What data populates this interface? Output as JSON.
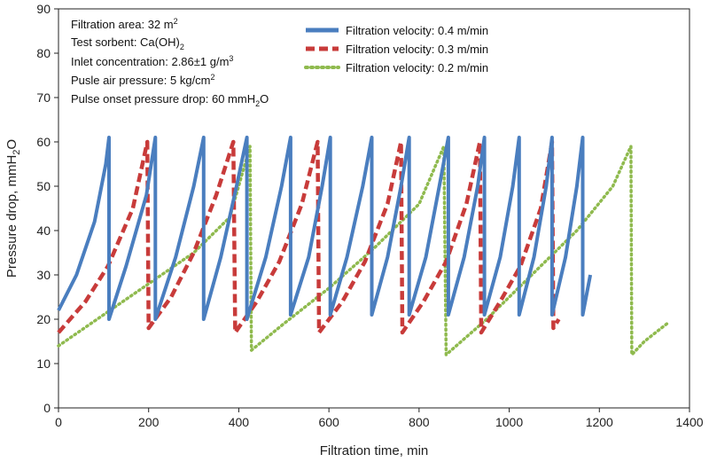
{
  "chart_data": {
    "type": "line",
    "xlabel": "Filtration time, min",
    "ylabel": {
      "main": "Pressure drop, mmH",
      "sub": "2",
      "end": "O"
    },
    "xlim": [
      0,
      1400
    ],
    "ylim": [
      0,
      90
    ],
    "xticks": [
      0,
      200,
      400,
      600,
      800,
      1000,
      1200,
      1400
    ],
    "yticks": [
      0,
      10,
      20,
      30,
      40,
      50,
      60,
      70,
      80,
      90
    ],
    "grid": false,
    "legend_position": "top-center",
    "annotations": [
      {
        "text": "Filtration area: 32 m",
        "sup": "2",
        "tail": ""
      },
      {
        "text": "Test sorbent: Ca(OH)",
        "sub": "2",
        "tail": ""
      },
      {
        "text": "Inlet concentration: 2.86±1 g/m",
        "sup": "3",
        "tail": ""
      },
      {
        "text": "Pusle air pressure: 5 kg/cm",
        "sup": "2",
        "tail": ""
      },
      {
        "text": "Pulse onset pressure drop: 60 mmH",
        "sub": "2",
        "tail": "O"
      }
    ],
    "series": [
      {
        "name": "Filtration velocity: 0.4 m/min",
        "color": "#4a7ebf",
        "style": "solid",
        "points": [
          [
            0,
            22
          ],
          [
            40,
            30
          ],
          [
            80,
            42
          ],
          [
            105,
            55
          ],
          [
            112,
            61
          ],
          [
            112,
            20
          ],
          [
            150,
            32
          ],
          [
            195,
            48
          ],
          [
            215,
            61
          ],
          [
            215,
            20
          ],
          [
            260,
            34
          ],
          [
            300,
            50
          ],
          [
            322,
            61
          ],
          [
            322,
            20
          ],
          [
            360,
            34
          ],
          [
            395,
            50
          ],
          [
            418,
            61
          ],
          [
            418,
            20
          ],
          [
            460,
            34
          ],
          [
            495,
            50
          ],
          [
            515,
            61
          ],
          [
            515,
            21
          ],
          [
            555,
            34
          ],
          [
            585,
            50
          ],
          [
            603,
            61
          ],
          [
            603,
            21
          ],
          [
            640,
            34
          ],
          [
            675,
            50
          ],
          [
            695,
            61
          ],
          [
            695,
            21
          ],
          [
            730,
            34
          ],
          [
            760,
            50
          ],
          [
            778,
            61
          ],
          [
            778,
            21
          ],
          [
            815,
            34
          ],
          [
            845,
            50
          ],
          [
            865,
            61
          ],
          [
            865,
            21
          ],
          [
            900,
            34
          ],
          [
            930,
            50
          ],
          [
            945,
            61
          ],
          [
            945,
            21
          ],
          [
            980,
            34
          ],
          [
            1008,
            50
          ],
          [
            1022,
            61
          ],
          [
            1022,
            21
          ],
          [
            1055,
            34
          ],
          [
            1082,
            50
          ],
          [
            1095,
            61
          ],
          [
            1095,
            21
          ],
          [
            1125,
            34
          ],
          [
            1150,
            50
          ],
          [
            1163,
            61
          ],
          [
            1163,
            21
          ],
          [
            1180,
            30
          ]
        ]
      },
      {
        "name": "Filtration velocity: 0.3 m/min",
        "color": "#c83b3a",
        "style": "dash",
        "points": [
          [
            0,
            17
          ],
          [
            60,
            24
          ],
          [
            110,
            32
          ],
          [
            165,
            45
          ],
          [
            197,
            60
          ],
          [
            200,
            18
          ],
          [
            250,
            25
          ],
          [
            300,
            35
          ],
          [
            350,
            48
          ],
          [
            388,
            60
          ],
          [
            392,
            17
          ],
          [
            440,
            24
          ],
          [
            490,
            33
          ],
          [
            540,
            46
          ],
          [
            575,
            60
          ],
          [
            578,
            17
          ],
          [
            630,
            24
          ],
          [
            680,
            33
          ],
          [
            730,
            46
          ],
          [
            760,
            60
          ],
          [
            763,
            17
          ],
          [
            810,
            24
          ],
          [
            860,
            33
          ],
          [
            905,
            46
          ],
          [
            935,
            60
          ],
          [
            938,
            17
          ],
          [
            980,
            24
          ],
          [
            1025,
            32
          ],
          [
            1070,
            45
          ],
          [
            1095,
            60
          ],
          [
            1098,
            18
          ],
          [
            1110,
            20
          ]
        ]
      },
      {
        "name": "Filtration velocity: 0.2 m/min",
        "color": "#8fba4e",
        "style": "dot",
        "points": [
          [
            0,
            14
          ],
          [
            100,
            21
          ],
          [
            200,
            28
          ],
          [
            300,
            35
          ],
          [
            380,
            43
          ],
          [
            425,
            59
          ],
          [
            428,
            13
          ],
          [
            500,
            19
          ],
          [
            600,
            27
          ],
          [
            700,
            36
          ],
          [
            800,
            46
          ],
          [
            855,
            59
          ],
          [
            860,
            12
          ],
          [
            950,
            20
          ],
          [
            1050,
            30
          ],
          [
            1150,
            40
          ],
          [
            1230,
            50
          ],
          [
            1270,
            59
          ],
          [
            1272,
            12
          ],
          [
            1300,
            15
          ],
          [
            1350,
            19
          ]
        ]
      }
    ]
  }
}
